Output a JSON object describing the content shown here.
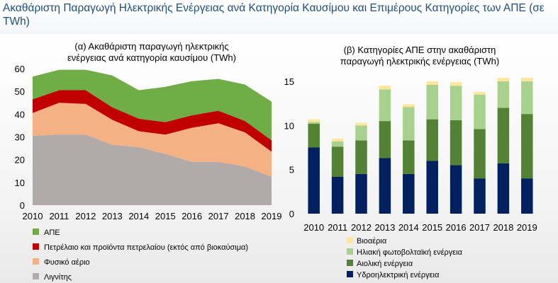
{
  "page": {
    "title": "Ακαθάριστη Παραγωγή Ηλεκτρικής Ενέργειας ανά Κατηγορία Καυσίμου και Επιμέρους Κατηγορίες των ΑΠΕ (σε TWh)"
  },
  "chart_data": [
    {
      "type": "area",
      "stacked": true,
      "title_lines": [
        "(α) Ακαθάριστη παραγωγή ηλεκτρικής",
        "ενέργειας ανά κατηγορία καυσίμου (TWh)"
      ],
      "x": [
        "2010",
        "2011",
        "2012",
        "2013",
        "2014",
        "2015",
        "2016",
        "2017",
        "2018",
        "2019"
      ],
      "ylim": [
        0,
        60
      ],
      "yticks": [
        "0",
        "10",
        "20",
        "30",
        "40",
        "50",
        "60"
      ],
      "legend_position": "bottom-left",
      "series": [
        {
          "name": "Λιγνίτης",
          "color": "#b2a9a9",
          "values": [
            30.5,
            31,
            31,
            26.5,
            25.5,
            22.5,
            19,
            19,
            17,
            12.5
          ]
        },
        {
          "name": "Φυσικό αέριο",
          "color": "#f4b183",
          "values": [
            10,
            14,
            13.5,
            11,
            7,
            8.5,
            15,
            17,
            15,
            11
          ]
        },
        {
          "name": "Πετρέλαιο και προϊόντα πετρελαίου (εκτός από βιοκαύσιμα)",
          "color": "#c00000",
          "values": [
            6,
            5.5,
            6,
            5.5,
            5.5,
            5.5,
            5.5,
            5.5,
            5,
            5
          ]
        },
        {
          "name": "ΑΠΕ",
          "color": "#70ad47",
          "values": [
            10,
            9,
            9,
            14,
            12.5,
            15.5,
            15,
            14,
            16,
            17
          ]
        }
      ]
    },
    {
      "type": "bar",
      "stacked": true,
      "title_lines": [
        "(β) Κατηγορίες ΑΠΕ στην ακαθάριστη",
        "παραγωγή ηλεκτρικής ενέργειας (TWh)"
      ],
      "categories": [
        "2010",
        "2011",
        "2012",
        "2013",
        "2014",
        "2015",
        "2016",
        "2017",
        "2018",
        "2019"
      ],
      "ylim": [
        0,
        15
      ],
      "yticks": [
        "0",
        "5",
        "10",
        "15"
      ],
      "legend_position": "bottom",
      "series": [
        {
          "name": "Υδροηλεκτρική ενέργεια",
          "color": "#002060",
          "values": [
            7.5,
            4.2,
            4.5,
            6.3,
            4.5,
            6.0,
            5.5,
            4.0,
            5.7,
            4.0
          ]
        },
        {
          "name": "Αιολική ενέργεια",
          "color": "#548235",
          "values": [
            2.7,
            3.4,
            3.8,
            4.2,
            3.8,
            4.7,
            5.1,
            5.6,
            6.3,
            7.3
          ]
        },
        {
          "name": "Ηλιακή φωτοβολταϊκή ενέργεια",
          "color": "#a9d18e",
          "values": [
            0.2,
            0.6,
            1.7,
            3.6,
            3.8,
            3.9,
            3.9,
            3.9,
            3.0,
            3.7
          ]
        },
        {
          "name": "Βιοαέρια",
          "color": "#ffe699",
          "values": [
            0.3,
            0.3,
            0.3,
            0.4,
            0.3,
            0.4,
            0.4,
            0.3,
            0.4,
            0.4
          ]
        }
      ]
    }
  ]
}
